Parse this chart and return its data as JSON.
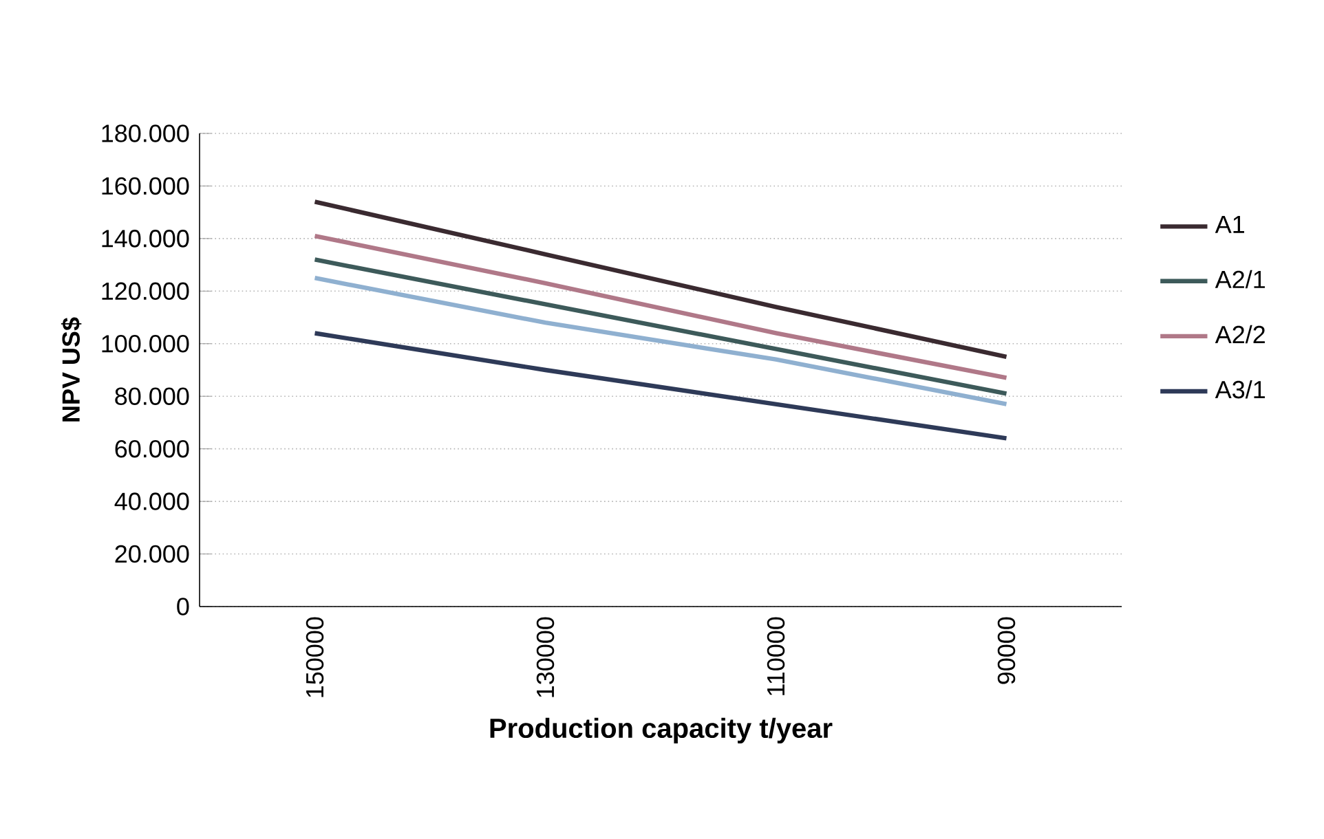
{
  "chart_data": {
    "type": "line",
    "xlabel": "Production capacity t/year",
    "ylabel": "NPV US$",
    "categories": [
      "150000",
      "130000",
      "110000",
      "90000"
    ],
    "series": [
      {
        "name": "A1",
        "color": "#3a2a30",
        "values": [
          154000,
          134000,
          114000,
          95000
        ]
      },
      {
        "name": "A2/1",
        "color": "#3d5a5a",
        "values": [
          132000,
          115000,
          98000,
          81000
        ]
      },
      {
        "name": "A2/2",
        "color": "#b07888",
        "values": [
          141000,
          123000,
          104000,
          87000
        ]
      },
      {
        "name": "A3/1",
        "color": "#2e3a58",
        "values": [
          104000,
          90000,
          77000,
          64000
        ]
      },
      {
        "color": "#8fb0d0",
        "values": [
          125000,
          108000,
          94000,
          77000
        ]
      }
    ],
    "ylim": [
      0,
      180000
    ],
    "yticks": [
      0,
      {
        "value": 20000,
        "label": "20.000"
      },
      {
        "value": 40000,
        "label": "40.000"
      },
      {
        "value": 60000,
        "label": "60.000"
      },
      {
        "value": 80000,
        "label": "80.000"
      },
      {
        "value": 100000,
        "label": "100.000"
      },
      {
        "value": 120000,
        "label": "120.000"
      },
      {
        "value": 140000,
        "label": "140.000"
      },
      {
        "value": 160000,
        "label": "160.000"
      },
      {
        "value": 180000,
        "label": "180.000"
      }
    ],
    "grid": "y",
    "legend": "right",
    "marker": "none",
    "line_style": "solid"
  }
}
